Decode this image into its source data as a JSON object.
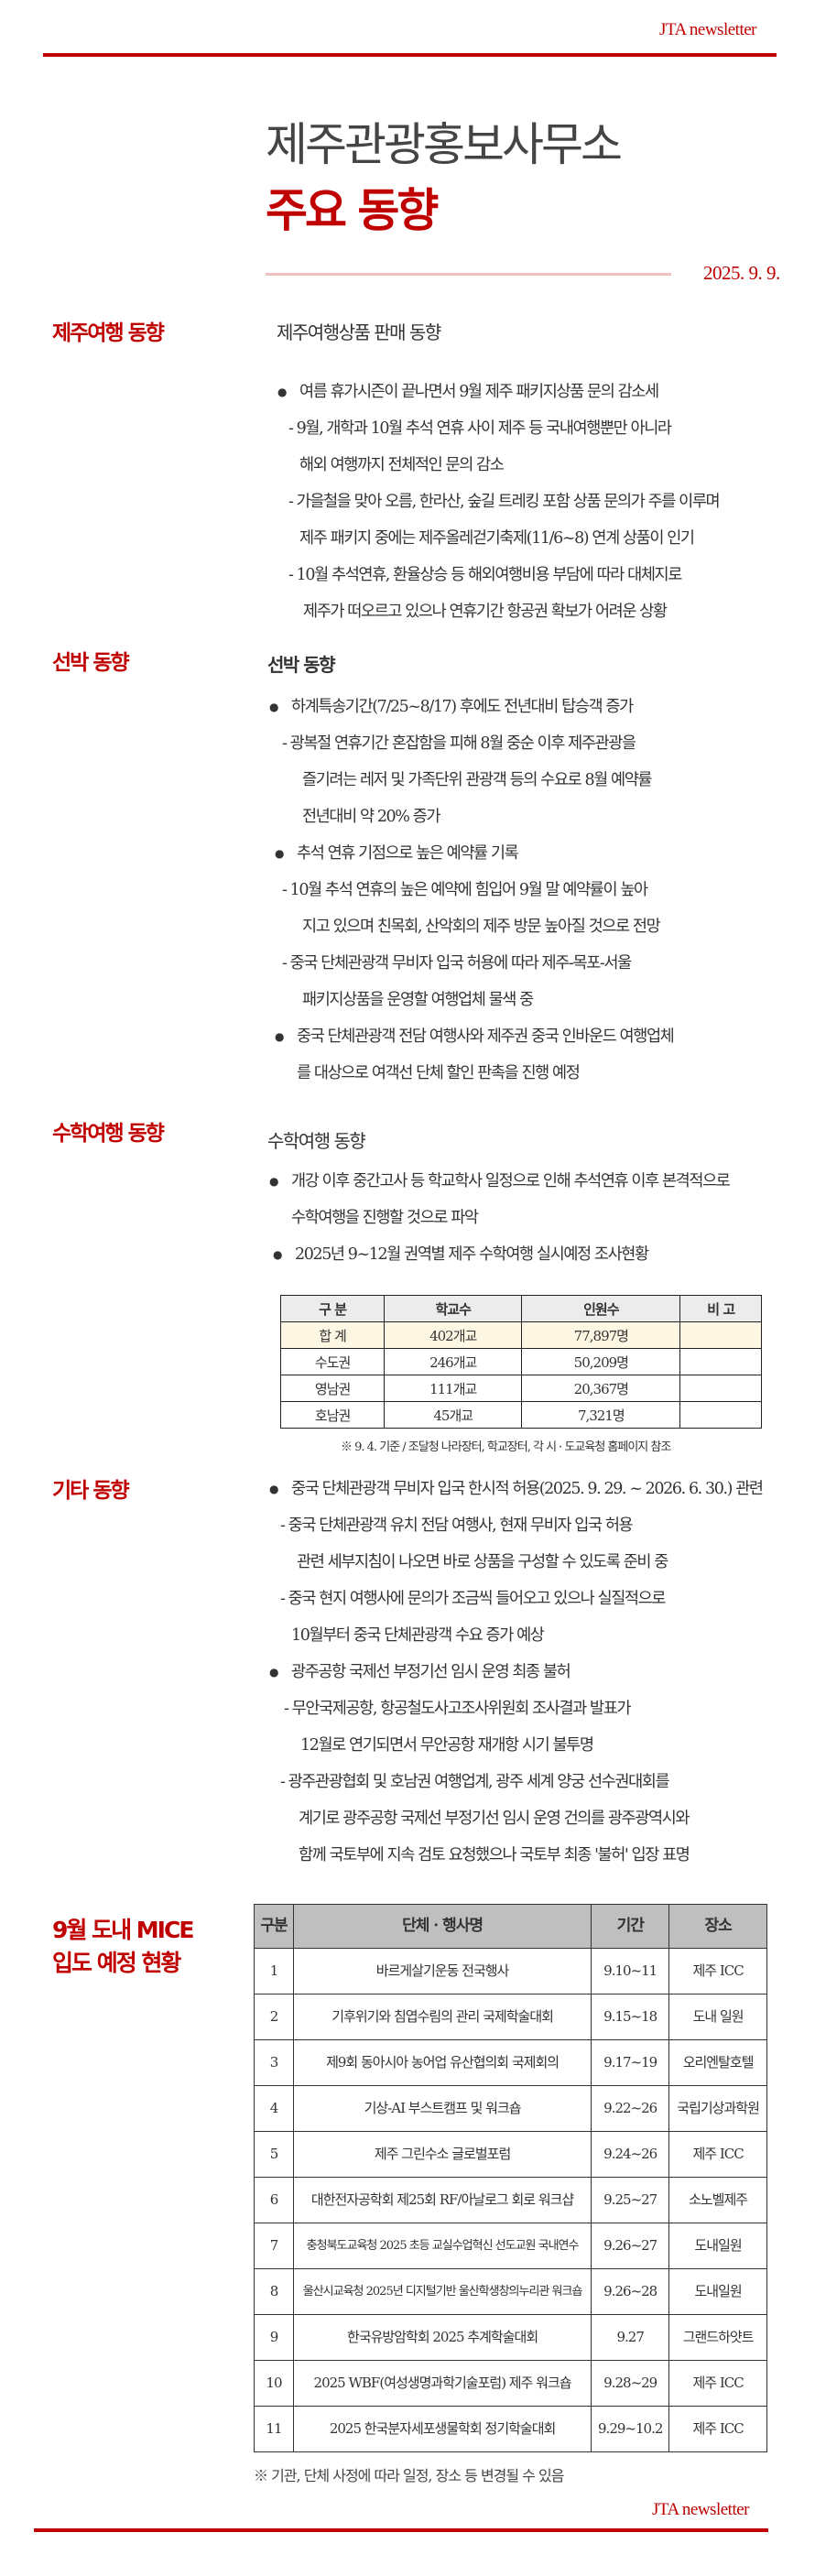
{
  "header": {
    "brand": "JTA newsletter"
  },
  "title": {
    "line1": "제주관광홍보사무소",
    "line2": "주요 동향",
    "date": "2025. 9. 9."
  },
  "sections": {
    "jeju_travel": {
      "label": "제주여행 동향",
      "subtitle": "제주여행상품 판매 동향",
      "lines": [
        "여름 휴가시즌이 끝나면서 9월 제주 패키지상품 문의 감소세",
        "- 9월, 개학과 10월 추석 연휴 사이 제주 등 국내여행뿐만 아니라",
        "해외 여행까지 전체적인 문의 감소",
        "- 가을철을 맞아 오름, 한라산, 숲길 트레킹 포함 상품 문의가 주를 이루며",
        "제주 패키지 중에는 제주올레걷기축제(11/6~8) 연계 상품이 인기",
        "- 10월 추석연휴, 환율상승 등 해외여행비용 부담에 따라 대체지로",
        "제주가 떠오르고 있으나 연휴기간 항공권 확보가 어려운 상황"
      ]
    },
    "ship": {
      "label": "선박 동향",
      "subtitle": "선박 동향",
      "lines": [
        "하계특송기간(7/25~8/17) 후에도 전년대비 탑승객 증가",
        "- 광복절 연휴기간 혼잡함을 피해 8월 중순 이후 제주관광을",
        "즐기려는 레저 및 가족단위 관광객 등의 수요로 8월 예약률",
        "전년대비 약 20% 증가",
        "추석 연휴 기점으로 높은 예약률 기록",
        "- 10월 추석 연휴의 높은 예약에 힘입어 9월 말 예약률이 높아",
        "지고 있으며 친목회, 산악회의 제주 방문 높아질 것으로 전망",
        "- 중국 단체관광객 무비자 입국 허용에 따라 제주-목포-서울",
        "패키지상품을 운영할 여행업체 물색 중",
        "중국 단체관광객 전담 여행사와 제주권 중국 인바운드 여행업체",
        "를 대상으로 여객선 단체 할인 판촉을 진행 예정"
      ]
    },
    "school_trip": {
      "label": "수학여행 동향",
      "subtitle": "수학여행 동향",
      "lines": [
        "개강 이후 중간고사 등 학교학사 일정으로 인해 추석연휴 이후 본격적으로",
        "수학여행을 진행할 것으로 파악",
        "2025년 9~12월 권역별 제주 수학여행 실시예정 조사현황"
      ],
      "table": {
        "headers": [
          "구 분",
          "학교수",
          "인원수",
          "비 고"
        ],
        "rows": [
          [
            "합 계",
            "402개교",
            "77,897명",
            ""
          ],
          [
            "수도권",
            "246개교",
            "50,209명",
            ""
          ],
          [
            "영남권",
            "111개교",
            "20,367명",
            ""
          ],
          [
            "호남권",
            "45개교",
            "7,321명",
            ""
          ]
        ],
        "note": "※ 9. 4. 기준 / 조달청 나라장터, 학교장터, 각 시 · 도교육청 홈페이지 참조"
      }
    },
    "etc": {
      "label": "기타 동향",
      "lines": [
        "중국 단체관광객 무비자 입국 한시적 허용(2025. 9. 29. ~ 2026. 6. 30.) 관련",
        "- 중국 단체관광객 유치 전담 여행사, 현재 무비자 입국 허용",
        "관련 세부지침이 나오면 바로 상품을 구성할 수 있도록 준비 중",
        "- 중국 현지 여행사에 문의가 조금씩 들어오고 있으나 실질적으로",
        "10월부터  중국 단체관광객 수요 증가 예상",
        "광주공항 국제선 부정기선 임시 운영 최종 불허",
        "-  무안국제공항, 항공철도사고조사위원회 조사결과 발표가",
        "12월로 연기되면서 무안공항 재개항 시기 불투명",
        "-  광주관광협회 및 호남권 여행업계, 광주 세계 양궁 선수권대회를",
        "계기로 광주공항 국제선 부정기선 임시 운영 건의를 광주광역시와",
        "함께 국토부에 지속 검토 요청했으나 국토부 최종 '불허' 입장 표명"
      ]
    },
    "mice": {
      "label_line1": "9월 도내 MICE",
      "label_line2": "입도 예정 현황",
      "table": {
        "headers": [
          "구분",
          "단체 · 행사명",
          "기간",
          "장소"
        ],
        "rows": [
          [
            "1",
            "바르게살기운동 전국행사",
            "9.10~11",
            "제주 ICC"
          ],
          [
            "2",
            "기후위기와 침엽수림의 관리 국제학술대회",
            "9.15~18",
            "도내 일원"
          ],
          [
            "3",
            "제9회 동아시아 농어업 유산협의회 국제회의",
            "9.17~19",
            "오리엔탈호텔"
          ],
          [
            "4",
            "기상-AI 부스트캠프 및 워크숍",
            "9.22~26",
            "국립기상과학원"
          ],
          [
            "5",
            "제주 그린수소 글로벌포럼",
            "9.24~26",
            "제주 ICC"
          ],
          [
            "6",
            "대한전자공학회 제25회 RF/아날로그 회로 워크샵",
            "9.25~27",
            "소노벨제주"
          ],
          [
            "7",
            "충청북도교육청 2025 초등 교실수업혁신 선도교원 국내연수",
            "9.26~27",
            "도내일원"
          ],
          [
            "8",
            "울산시교육청 2025년 디지털기반 울산학생창의누리관 워크숍",
            "9.26~28",
            "도내일원"
          ],
          [
            "9",
            "한국유방암학회 2025 추계학술대회",
            "9.27",
            "그랜드하얏트"
          ],
          [
            "10",
            "2025 WBF(여성생명과학기술포럼) 제주 워크숍",
            "9.28~29",
            "제주 ICC"
          ],
          [
            "11",
            "2025 한국분자세포생물학회 정기학술대회",
            "9.29~10.2",
            "제주 ICC"
          ]
        ],
        "note": "※ 기관, 단체 사정에 따라 일정, 장소 등 변경될 수 있음"
      }
    }
  },
  "footer": {
    "brand": "JTA newsletter"
  },
  "colors": {
    "accent": "#c00000",
    "table_header": "#bfbfbf",
    "total_row": "#fdf6e3"
  }
}
